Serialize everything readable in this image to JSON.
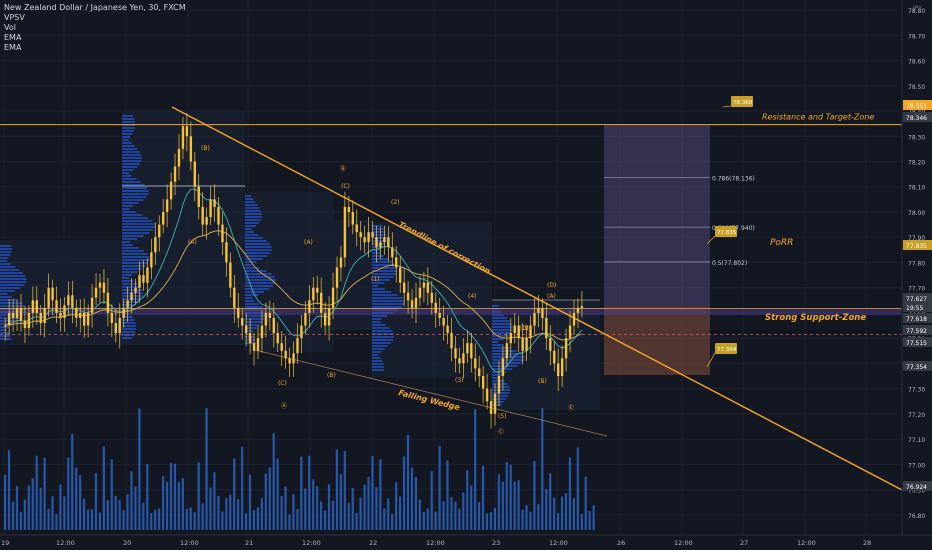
{
  "header": {
    "symbol": "New Zealand Dollar / Japanese Yen, 30, FXCM",
    "indicators": [
      "VPSV",
      "Vol",
      "EMA",
      "EMA"
    ],
    "currency": "JPY"
  },
  "colors": {
    "background": "#131722",
    "up_candle": "#f5c23b",
    "down_candle": "#f5c23b",
    "annotation": "#f5a623",
    "ema_fast": "#3aa6a6",
    "ema_slow": "#c8a24a",
    "volume": "#2f6fd6",
    "profile": "#2962ff",
    "resistance": "#f5a623",
    "support_zone": "#4b3d8f",
    "target_zone": "#5b4f8a",
    "stop_zone": "#7a4a3a"
  },
  "chart_data": {
    "type": "candlestick",
    "ylim": [
      76.72,
      78.84
    ],
    "y_ticks": [
      "78.80",
      "78.70",
      "78.60",
      "78.50",
      "78.40",
      "78.30",
      "78.20",
      "78.10",
      "78.00",
      "77.90",
      "77.80",
      "77.70",
      "77.60",
      "77.50",
      "77.40",
      "77.30",
      "77.20",
      "77.10",
      "77.00",
      "76.90",
      "76.80",
      "76.70"
    ],
    "x_ticks": [
      "19",
      "12:00",
      "20",
      "12:00",
      "21",
      "12:00",
      "22",
      "12:00",
      "23",
      "12:00",
      "26",
      "12:00",
      "27",
      "12:00",
      "28"
    ],
    "price_labels": [
      {
        "value": "78.351",
        "style": "resistance"
      },
      {
        "value": "78.346",
        "style": "dark"
      },
      {
        "value": "77.835",
        "style": "gold"
      },
      {
        "value": "77.627",
        "style": "dark"
      },
      {
        "value": "19:55",
        "style": "dark"
      },
      {
        "value": "77.618",
        "style": "dark"
      },
      {
        "value": "77.592",
        "style": "dark"
      },
      {
        "value": "77.515",
        "style": "dark"
      },
      {
        "value": "77.354",
        "style": "dark"
      },
      {
        "value": "76.924",
        "style": "dark"
      }
    ],
    "fib_levels": [
      {
        "label": "0.786(78.136)",
        "value": 78.136
      },
      {
        "label": "0.618(77.940)",
        "value": 77.94
      },
      {
        "label": "0.5(77.802)",
        "value": 77.802
      }
    ],
    "callouts": [
      {
        "text": "78.360",
        "value": 78.36
      },
      {
        "text": "77.835",
        "value": 77.835
      },
      {
        "text": "77.354",
        "value": 77.354
      }
    ],
    "annotations": {
      "resistance": "Resistance and Target-Zone",
      "porr": "PoRR",
      "support": "Strong Support-Zone",
      "trendline": "Trendline of correction",
      "wedge": "Falling Wedge"
    },
    "wave_labels": [
      "(B)",
      "(A)",
      "(C)",
      "(B)",
      "Ⓐ",
      "Ⓑ",
      "(C)",
      "(A)",
      "(1)",
      "(2)",
      "(3)",
      "(4)",
      "(5)",
      "Ⓒ",
      "(A)",
      "(B)",
      "(C)",
      "(D)",
      "Ⓔ",
      "(B)"
    ],
    "candles_close": [
      77.55,
      77.6,
      77.58,
      77.62,
      77.57,
      77.54,
      77.6,
      77.65,
      77.6,
      77.56,
      77.62,
      77.7,
      77.65,
      77.6,
      77.58,
      77.63,
      77.67,
      77.62,
      77.58,
      77.6,
      77.55,
      77.6,
      77.66,
      77.7,
      77.72,
      77.68,
      77.6,
      77.56,
      77.52,
      77.58,
      77.62,
      77.65,
      77.68,
      77.7,
      77.75,
      77.72,
      77.78,
      77.84,
      77.9,
      77.95,
      78.0,
      78.05,
      78.12,
      78.18,
      78.25,
      78.34,
      78.3,
      78.2,
      78.1,
      78.02,
      77.95,
      77.98,
      78.05,
      78.02,
      77.95,
      77.88,
      77.8,
      77.7,
      77.62,
      77.58,
      77.55,
      77.52,
      77.48,
      77.45,
      77.5,
      77.55,
      77.6,
      77.58,
      77.52,
      77.48,
      77.45,
      77.42,
      77.4,
      77.44,
      77.5,
      77.55,
      77.6,
      77.65,
      77.7,
      77.68,
      77.6,
      77.55,
      77.62,
      77.7,
      77.78,
      77.82,
      78.02,
      78.0,
      77.95,
      77.92,
      77.9,
      77.88,
      77.92,
      77.9,
      77.86,
      77.88,
      77.9,
      77.86,
      77.82,
      77.78,
      77.72,
      77.68,
      77.65,
      77.62,
      77.66,
      77.7,
      77.72,
      77.68,
      77.64,
      77.6,
      77.58,
      77.55,
      77.52,
      77.46,
      77.42,
      77.4,
      77.44,
      77.48,
      77.42,
      77.38,
      77.35,
      77.3,
      77.25,
      77.2,
      77.28,
      77.35,
      77.42,
      77.48,
      77.52,
      77.55,
      77.5,
      77.45,
      77.5,
      77.55,
      77.6,
      77.62,
      77.58,
      77.5,
      77.45,
      77.4,
      77.35,
      77.42,
      77.5,
      77.55,
      77.6,
      77.62,
      77.627
    ]
  }
}
